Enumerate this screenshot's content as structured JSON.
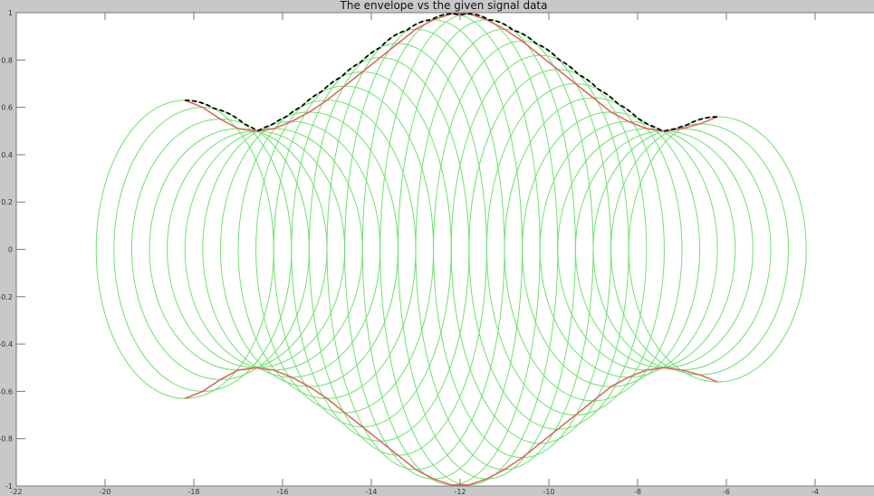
{
  "chart_data": {
    "type": "line",
    "title": "The envelope vs the given signal data",
    "xlabel": "",
    "ylabel": "",
    "xlim": [
      -22,
      -2
    ],
    "ylim": [
      -1,
      1
    ],
    "xticks": [
      -22,
      -20,
      -18,
      -16,
      -14,
      -12,
      -10,
      -8,
      -6,
      -4
    ],
    "yticks": [
      1,
      0.8,
      0.6,
      0.4,
      0.2,
      0,
      -0.2,
      -0.4,
      -0.6,
      -0.8,
      -1
    ],
    "grid": false,
    "ellipse_half_width": 2,
    "signal": {
      "x": [
        -18.2,
        -17.8,
        -17.4,
        -17.0,
        -16.6,
        -16.2,
        -15.8,
        -15.4,
        -15.0,
        -14.6,
        -14.2,
        -13.8,
        -13.4,
        -13.0,
        -12.6,
        -12.2,
        -11.8,
        -11.4,
        -11.0,
        -10.6,
        -10.2,
        -9.8,
        -9.4,
        -9.0,
        -8.6,
        -8.2,
        -7.8,
        -7.4,
        -7.0,
        -6.6,
        -6.2
      ],
      "amplitude": [
        0.63,
        0.6,
        0.55,
        0.51,
        0.5,
        0.51,
        0.54,
        0.58,
        0.63,
        0.69,
        0.75,
        0.81,
        0.87,
        0.93,
        0.97,
        0.995,
        0.995,
        0.97,
        0.93,
        0.88,
        0.82,
        0.76,
        0.7,
        0.64,
        0.58,
        0.54,
        0.51,
        0.5,
        0.51,
        0.53,
        0.56
      ]
    },
    "colors": {
      "ellipses": "#6ee06e",
      "signal": "#e06060",
      "envelope": "#000000",
      "background": "#c8c8c8",
      "axes": "#ffffff"
    }
  }
}
